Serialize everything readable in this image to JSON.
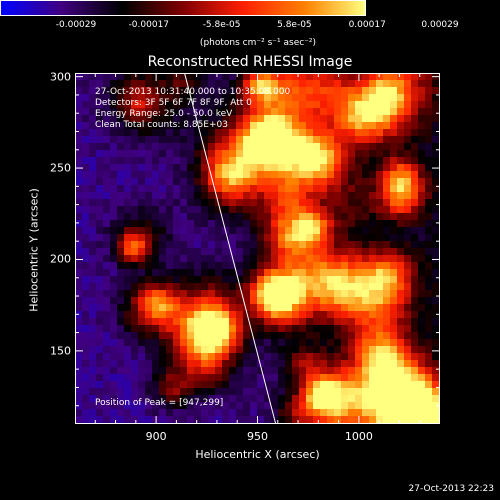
{
  "chart_data": {
    "type": "heatmap",
    "title": "Reconstructed RHESSI Image",
    "xlabel": "Heliocentric X (arcsec)",
    "ylabel": "Heliocentric Y (arcsec)",
    "xlim": [
      860,
      1040
    ],
    "ylim": [
      110,
      302
    ],
    "x_ticks": [
      900,
      950,
      1000
    ],
    "y_ticks": [
      150,
      200,
      250,
      300
    ],
    "colorbar": {
      "ticks": [
        "-0.00029",
        "-0.00017",
        "-5.8e-05",
        "5.8e-05",
        "0.00017",
        "0.00029"
      ],
      "unit_label": "(photons cm⁻² s⁻¹ asec⁻²)",
      "colormap": [
        "#0000ff",
        "#400080",
        "#000000",
        "#800000",
        "#ff2000",
        "#ff8000",
        "#ffff80"
      ]
    },
    "info_lines": [
      "27-Oct-2013 10:31:40.000 to 10:35:08.000",
      "Detectors: 3F 5F 6F 7F 8F 9F, Att 0",
      "Energy Range: 25.0 - 50.0 keV",
      "Clean     Total counts: 8.85E+03"
    ],
    "peak_label": "Position of Peak = [947,299]",
    "limb_line": [
      [
        914,
        302
      ],
      [
        959,
        110
      ]
    ]
  },
  "footer": "27-Oct-2013 22:23"
}
